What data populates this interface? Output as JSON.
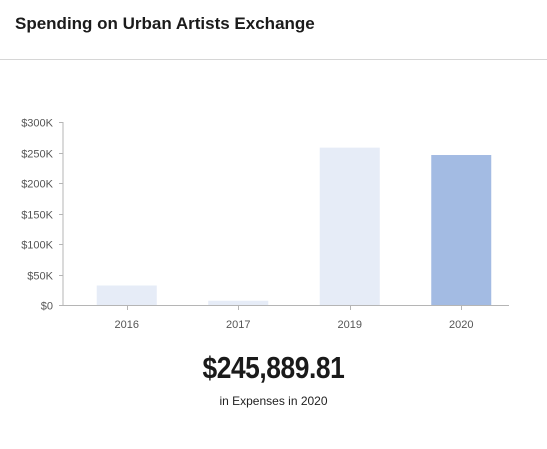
{
  "header": {
    "title": "Spending on Urban Artists Exchange"
  },
  "summary": {
    "amount": "$245,889.81",
    "caption": "in Expenses in 2020"
  },
  "colors": {
    "bar_muted": "#e6ecf7",
    "bar_highlight": "#a3bbe3",
    "axis": "#b5b5b5"
  },
  "chart_data": {
    "type": "bar",
    "categories": [
      "2016",
      "2017",
      "2019",
      "2020"
    ],
    "values": [
      32000,
      7000,
      258000,
      245889.81
    ],
    "highlight_index": 3,
    "y_ticks": [
      0,
      50000,
      100000,
      150000,
      200000,
      250000,
      300000
    ],
    "y_tick_labels": [
      "$0",
      "$50K",
      "$100K",
      "$150K",
      "$200K",
      "$250K",
      "$300K"
    ],
    "ylim": [
      0,
      300000
    ],
    "title": "",
    "xlabel": "",
    "ylabel": "",
    "grid": false,
    "legend": "none"
  }
}
